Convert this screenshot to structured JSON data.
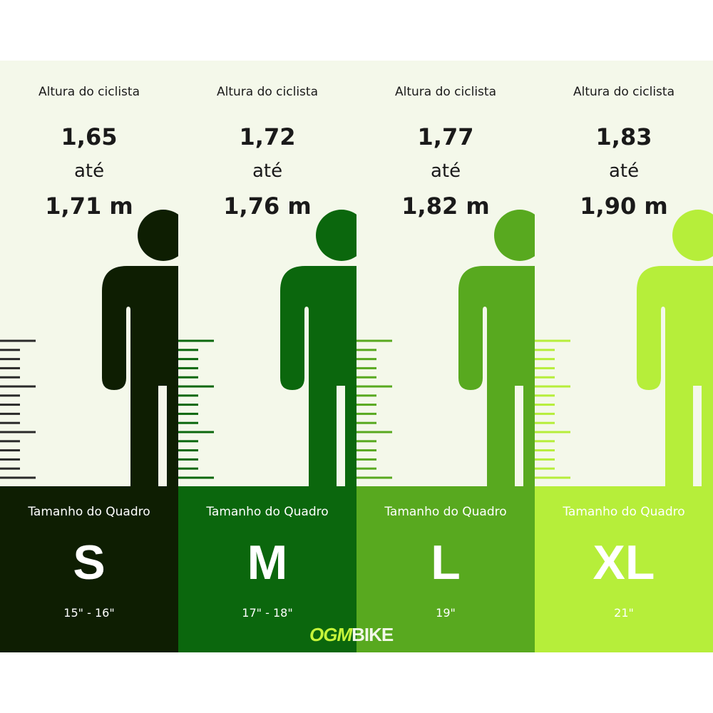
{
  "columns": [
    {
      "label": "Altura do ciclista",
      "from": "1,65",
      "to_word": "até",
      "to": "1,71 m",
      "frame_label": "Tamanho do Quadro",
      "size": "S",
      "inches": "15\" - 16\"",
      "color": "#0e1e02"
    },
    {
      "label": "Altura do ciclista",
      "from": "1,72",
      "to_word": "até",
      "to": "1,76 m",
      "frame_label": "Tamanho do Quadro",
      "size": "M",
      "inches": "17\" - 18\"",
      "color": "#0b670d"
    },
    {
      "label": "Altura do ciclista",
      "from": "1,77",
      "to_word": "até",
      "to": "1,82 m",
      "frame_label": "Tamanho do Quadro",
      "size": "L",
      "inches": "19\"",
      "color": "#58a91f"
    },
    {
      "label": "Altura do ciclista",
      "from": "1,83",
      "to_word": "até",
      "to": "1,90 m",
      "frame_label": "Tamanho do Quadro",
      "size": "XL",
      "inches": "21\"",
      "color": "#b6ee3a"
    }
  ],
  "logo": {
    "part1": "OGM",
    "part2": "BIKE"
  }
}
